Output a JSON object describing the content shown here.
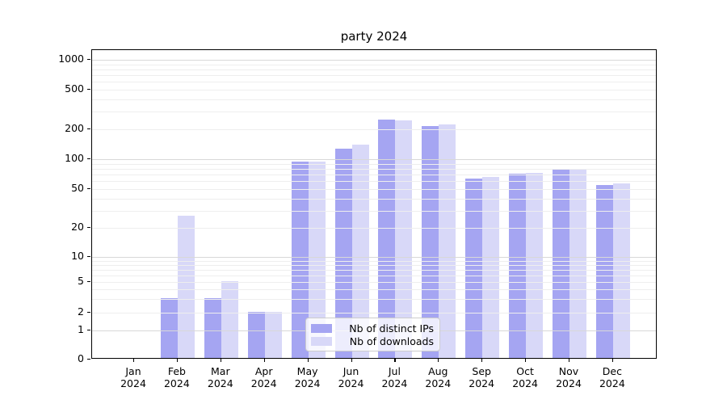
{
  "title": "party 2024",
  "legend": {
    "items": [
      {
        "label": "Nb of distinct IPs",
        "color": "#a5a5f2"
      },
      {
        "label": "Nb of downloads",
        "color": "#d8d8f8"
      }
    ]
  },
  "y_axis": {
    "tick_values": [
      0,
      1,
      2,
      5,
      10,
      20,
      50,
      100,
      200,
      500,
      1000
    ],
    "tick_labels": [
      "0",
      "1",
      "2",
      "5",
      "10",
      "20",
      "50",
      "100",
      "200",
      "500",
      "1000"
    ]
  },
  "x_axis": {
    "tick_labels": [
      "Jan 2024",
      "Feb 2024",
      "Mar 2024",
      "Apr 2024",
      "May 2024",
      "Jun 2024",
      "Jul 2024",
      "Aug 2024",
      "Sep 2024",
      "Oct 2024",
      "Nov 2024",
      "Dec 2024"
    ]
  },
  "colors": {
    "bar_dark": "#a5a5f2",
    "bar_light": "#d8d8f8",
    "grid_minor": "#eeeeee",
    "grid_major": "#d8d8d8",
    "spine": "#000000"
  },
  "chart_data": {
    "type": "bar",
    "title": "party 2024",
    "categories": [
      "Jan 2024",
      "Feb 2024",
      "Mar 2024",
      "Apr 2024",
      "May 2024",
      "Jun 2024",
      "Jul 2024",
      "Aug 2024",
      "Sep 2024",
      "Oct 2024",
      "Nov 2024",
      "Dec 2024"
    ],
    "series": [
      {
        "name": "Nb of distinct IPs",
        "color": "#a5a5f2",
        "values": [
          0,
          3,
          3,
          2,
          93,
          125,
          245,
          210,
          63,
          70,
          78,
          54
        ]
      },
      {
        "name": "Nb of downloads",
        "color": "#d8d8f8",
        "values": [
          0,
          26,
          5,
          2,
          93,
          137,
          242,
          218,
          65,
          71,
          77,
          56
        ]
      }
    ],
    "xlabel": "",
    "ylabel": "",
    "yscale": "symlog",
    "yticks": [
      0,
      1,
      2,
      5,
      10,
      20,
      50,
      100,
      200,
      500,
      1000
    ],
    "ylim": [
      0,
      1300
    ],
    "grid": "horizontal",
    "legend_position": "lower center"
  }
}
